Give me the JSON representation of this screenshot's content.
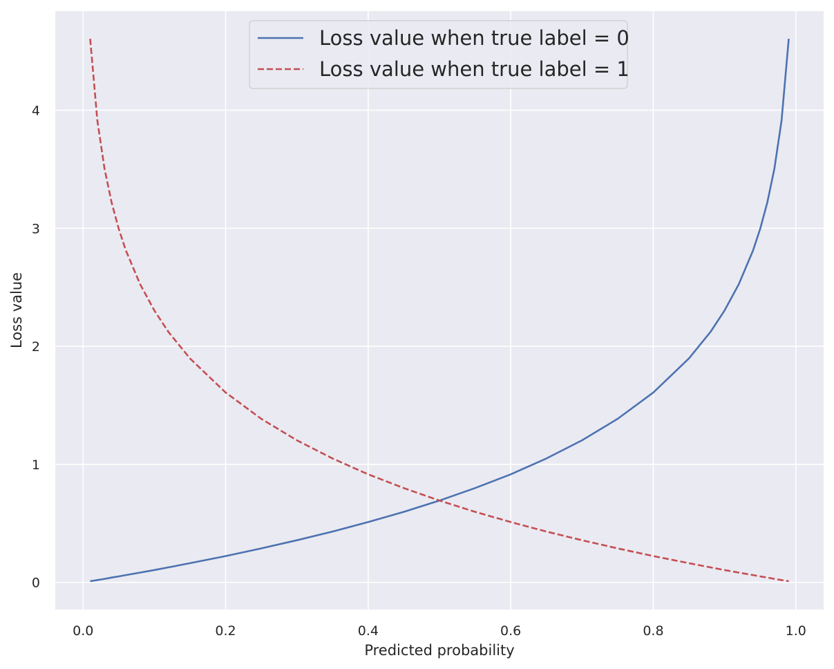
{
  "chart_data": {
    "type": "line",
    "title": "",
    "xlabel": "Predicted probability",
    "ylabel": "Loss value",
    "xlim": [
      -0.039,
      1.039
    ],
    "ylim": [
      -0.23,
      4.84
    ],
    "x_ticks": [
      0.0,
      0.2,
      0.4,
      0.6,
      0.8,
      1.0
    ],
    "x_tick_labels": [
      "0.0",
      "0.2",
      "0.4",
      "0.6",
      "0.8",
      "1.0"
    ],
    "y_ticks": [
      0,
      1,
      2,
      3,
      4
    ],
    "y_tick_labels": [
      "0",
      "1",
      "2",
      "3",
      "4"
    ],
    "grid": true,
    "background": "#eaeaf2",
    "grid_color": "#ffffff",
    "legend_position": "upper center",
    "x": [
      0.01,
      0.02,
      0.03,
      0.04,
      0.05,
      0.06,
      0.08,
      0.1,
      0.12,
      0.15,
      0.2,
      0.25,
      0.3,
      0.35,
      0.4,
      0.45,
      0.5,
      0.55,
      0.6,
      0.65,
      0.7,
      0.75,
      0.8,
      0.85,
      0.88,
      0.9,
      0.92,
      0.94,
      0.95,
      0.96,
      0.97,
      0.98,
      0.99
    ],
    "series": [
      {
        "name": "Loss value when true label = 0",
        "color": "#4c72b0",
        "line_style": "solid",
        "values": [
          0.01,
          0.02,
          0.03,
          0.041,
          0.051,
          0.062,
          0.083,
          0.105,
          0.128,
          0.163,
          0.223,
          0.288,
          0.357,
          0.431,
          0.511,
          0.598,
          0.693,
          0.799,
          0.916,
          1.05,
          1.204,
          1.386,
          1.609,
          1.897,
          2.12,
          2.303,
          2.526,
          2.813,
          2.996,
          3.219,
          3.507,
          3.912,
          4.605
        ]
      },
      {
        "name": "Loss value when true label = 1",
        "color": "#c44e52",
        "line_style": "dashed",
        "values": [
          4.605,
          3.912,
          3.507,
          3.219,
          2.996,
          2.813,
          2.526,
          2.303,
          2.12,
          1.897,
          1.609,
          1.386,
          1.204,
          1.05,
          0.916,
          0.799,
          0.693,
          0.598,
          0.511,
          0.431,
          0.357,
          0.288,
          0.223,
          0.163,
          0.128,
          0.105,
          0.083,
          0.062,
          0.051,
          0.041,
          0.03,
          0.02,
          0.01
        ]
      }
    ]
  }
}
